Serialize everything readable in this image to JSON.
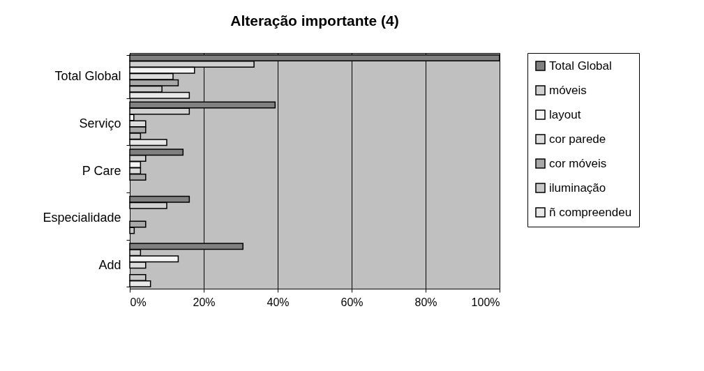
{
  "chart_data": {
    "type": "bar",
    "orientation": "horizontal",
    "title": "Alteração importante (4)",
    "categories": [
      "Total Global",
      "Serviço",
      "P Care",
      "Especialidade",
      "Add"
    ],
    "series": [
      {
        "name": "Total Global",
        "color": "#808080",
        "values": [
          100,
          39.3,
          14.4,
          16.1,
          30.6
        ]
      },
      {
        "name": "móveis",
        "color": "#d0d0d0",
        "values": [
          33.6,
          16.1,
          4.3,
          10.0,
          2.9
        ]
      },
      {
        "name": "layout",
        "color": "#f4f4f4",
        "values": [
          17.5,
          1.1,
          2.9,
          null,
          13.1
        ]
      },
      {
        "name": "cor parede",
        "color": "#dcdcdc",
        "values": [
          11.7,
          4.3,
          2.9,
          null,
          4.3
        ]
      },
      {
        "name": "cor móveis",
        "color": "#a8a8a8",
        "values": [
          13.1,
          4.3,
          4.3,
          4.3,
          null
        ]
      },
      {
        "name": "iluminação",
        "color": "#c8c8c8",
        "values": [
          8.7,
          2.9,
          null,
          1.2,
          4.3
        ]
      },
      {
        "name": "ñ compreendeu",
        "color": "#e8e8e8",
        "values": [
          16.1,
          10.0,
          null,
          null,
          5.6
        ]
      }
    ],
    "xlim": [
      0,
      100
    ],
    "xticks": [
      {
        "value": 0,
        "label": "0%"
      },
      {
        "value": 20,
        "label": "20%"
      },
      {
        "value": 40,
        "label": "40%"
      },
      {
        "value": 60,
        "label": "60%"
      },
      {
        "value": 80,
        "label": "80%"
      },
      {
        "value": 100,
        "label": "100%"
      }
    ],
    "grid": "x",
    "legend": "right"
  }
}
